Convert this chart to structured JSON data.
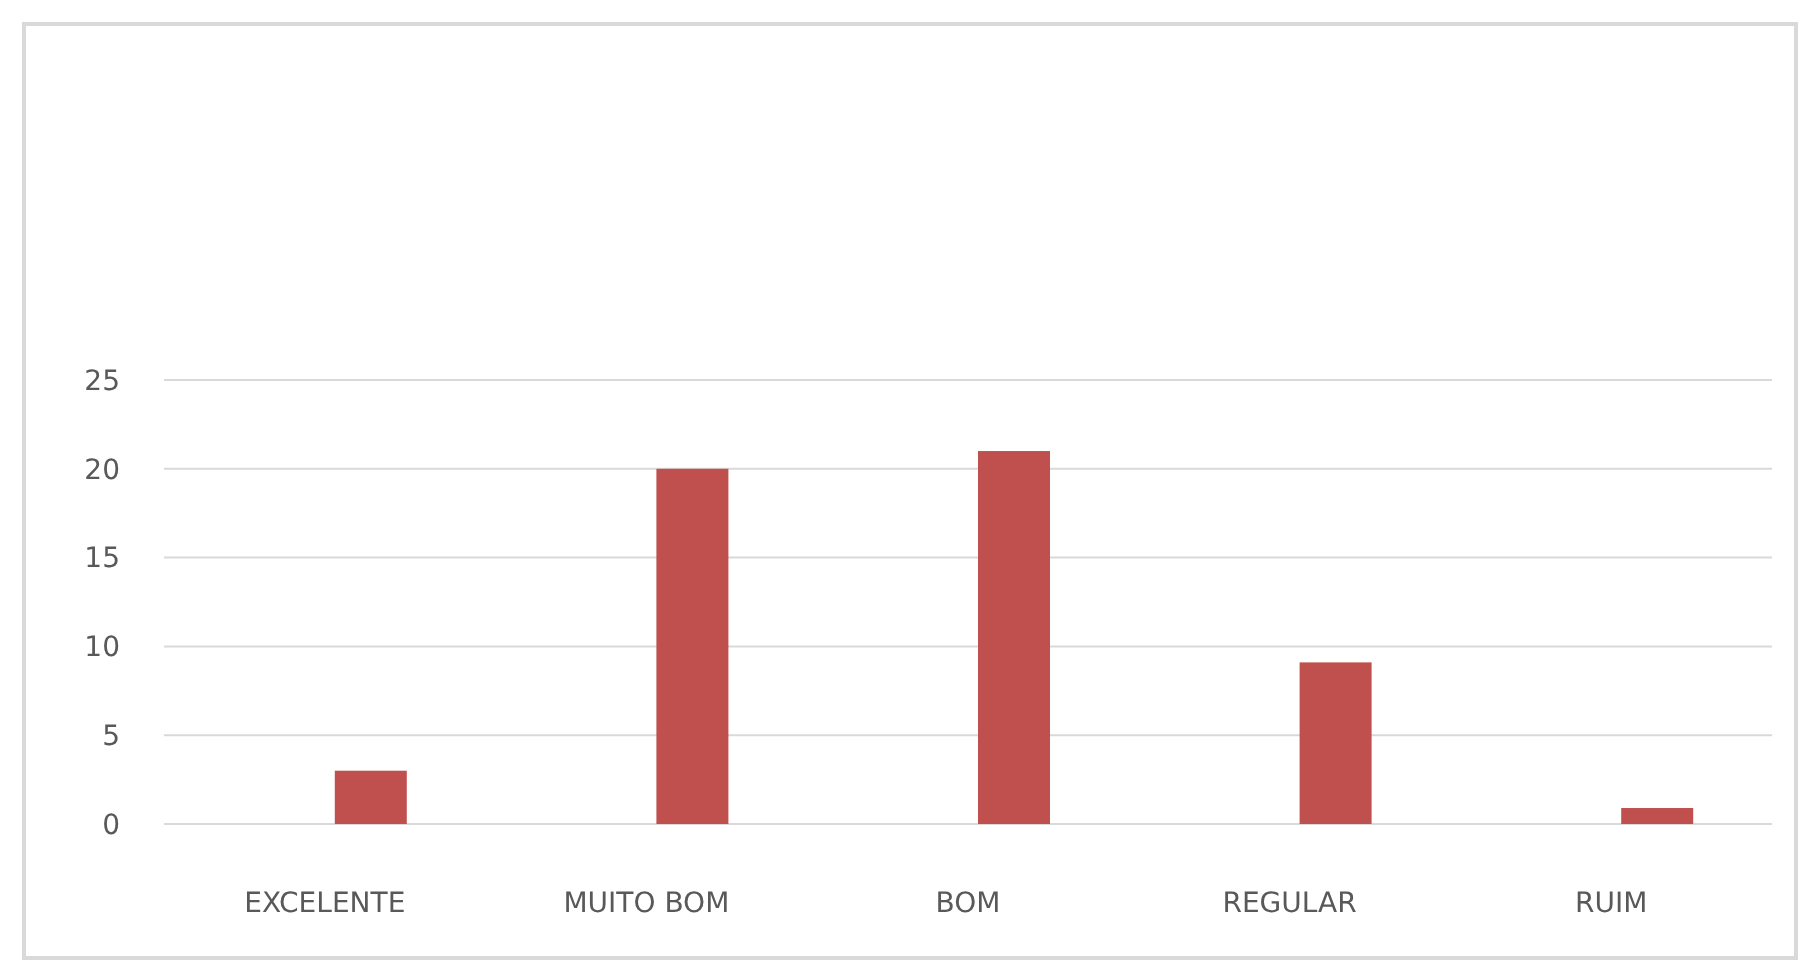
{
  "chart_data": {
    "type": "bar",
    "categories": [
      "EXCELENTE",
      "MUITO BOM",
      "BOM",
      "REGULAR",
      "RUIM"
    ],
    "values": [
      3,
      20,
      21,
      9.1,
      0.9
    ],
    "color": "#c0504d",
    "ylim": [
      0,
      25
    ],
    "yticks": [
      0,
      5,
      10,
      15,
      20,
      25
    ],
    "grid": "y"
  }
}
